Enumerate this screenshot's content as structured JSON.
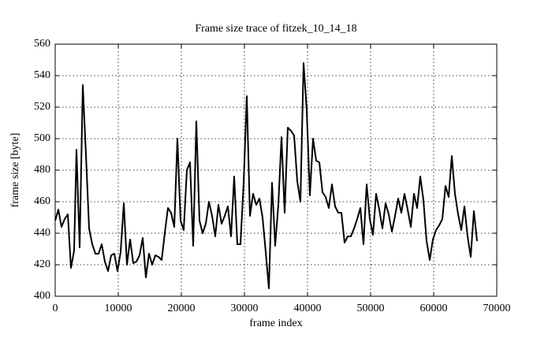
{
  "chart_data": {
    "type": "line",
    "title": "Frame size trace of fitzek_10_14_18",
    "xlabel": "frame index",
    "ylabel": "frame size [byte]",
    "x": [
      0,
      500,
      1000,
      1500,
      2000,
      2500,
      3000,
      3375,
      3875,
      4375,
      4875,
      5375,
      5875,
      6375,
      6875,
      7375,
      7875,
      8375,
      8875,
      9375,
      9875,
      10375,
      10875,
      11375,
      11875,
      12375,
      12875,
      13375,
      13875,
      14375,
      14875,
      15375,
      15875,
      16375,
      16875,
      17375,
      17875,
      18375,
      18875,
      19375,
      19875,
      20375,
      20875,
      21375,
      21875,
      22375,
      22875,
      23375,
      23875,
      24375,
      24875,
      25375,
      25875,
      26375,
      26875,
      27375,
      27875,
      28375,
      28875,
      29375,
      29875,
      30375,
      30875,
      31375,
      31875,
      32375,
      32875,
      33375,
      33875,
      34375,
      34875,
      35375,
      35875,
      36375,
      36875,
      37375,
      37875,
      38375,
      38875,
      39375,
      39875,
      40375,
      40875,
      41375,
      41875,
      42375,
      42875,
      43375,
      43875,
      44375,
      44875,
      45375,
      45875,
      46375,
      46875,
      47375,
      47875,
      48375,
      48875,
      49375,
      49875,
      50375,
      50875,
      51375,
      51875,
      52375,
      52875,
      53375,
      53875,
      54375,
      54875,
      55375,
      55875,
      56375,
      56875,
      57375,
      57875,
      58375,
      58875,
      59375,
      59875,
      60375,
      60875,
      61375,
      61875,
      62375,
      62875,
      63375,
      63875,
      64375,
      64875,
      65375,
      65875,
      66375,
      66875
    ],
    "values": [
      448,
      455,
      444,
      449,
      452,
      418,
      429,
      493,
      431,
      534,
      490,
      443,
      433,
      427,
      427,
      433,
      422,
      416,
      426,
      427,
      416,
      428,
      459,
      420,
      436,
      421,
      422,
      426,
      437,
      412,
      427,
      420,
      426,
      425,
      423,
      440,
      456,
      453,
      444,
      500,
      448,
      442,
      480,
      485,
      432,
      511,
      448,
      440,
      446,
      460,
      451,
      438,
      458,
      446,
      451,
      457,
      438,
      476,
      433,
      433,
      472,
      527,
      451,
      465,
      458,
      462,
      450,
      428,
      405,
      472,
      432,
      458,
      501,
      453,
      507,
      505,
      502,
      473,
      460,
      548,
      518,
      464,
      500,
      486,
      485,
      466,
      463,
      456,
      471,
      457,
      453,
      453,
      434,
      438,
      438,
      443,
      449,
      456,
      433,
      471,
      449,
      439,
      465,
      455,
      443,
      459,
      452,
      441,
      451,
      462,
      453,
      465,
      455,
      444,
      465,
      456,
      476,
      461,
      435,
      423,
      436,
      442,
      445,
      449,
      470,
      463,
      489,
      465,
      452,
      442,
      457,
      438,
      425,
      454,
      435
    ],
    "color": "#000000",
    "xlim": [
      0,
      70000
    ],
    "xticks": [
      0,
      10000,
      20000,
      30000,
      40000,
      50000,
      60000,
      70000
    ],
    "ylim": [
      400,
      560
    ],
    "yticks": [
      400,
      420,
      440,
      460,
      480,
      500,
      520,
      540,
      560
    ],
    "grid": true
  }
}
